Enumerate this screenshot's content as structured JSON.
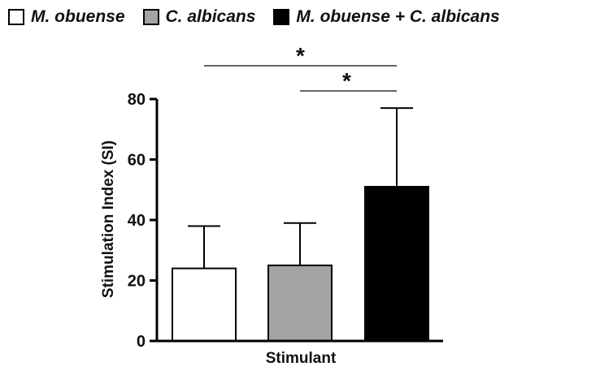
{
  "chart_data": {
    "type": "bar",
    "categories": [
      "M. obuense",
      "C. albicans",
      "M. obuense + C. albicans"
    ],
    "values": [
      24,
      25,
      51
    ],
    "error_upper": [
      38,
      39,
      77
    ],
    "colors": [
      "#ffffff",
      "#a3a3a6",
      "#000000"
    ],
    "title": "",
    "xlabel": "Stimulant",
    "ylabel": "Stimulation Index (SI)",
    "ylim": [
      0,
      80
    ],
    "yticks": [
      0,
      20,
      40,
      60,
      80
    ],
    "legend": {
      "placement": "top",
      "entries": [
        "M. obuense",
        "C. albicans",
        "M. obuense + C. albicans"
      ]
    },
    "significance": [
      {
        "from": 0,
        "to": 2,
        "label": "*"
      },
      {
        "from": 1,
        "to": 2,
        "label": "*"
      }
    ],
    "grid": false
  }
}
